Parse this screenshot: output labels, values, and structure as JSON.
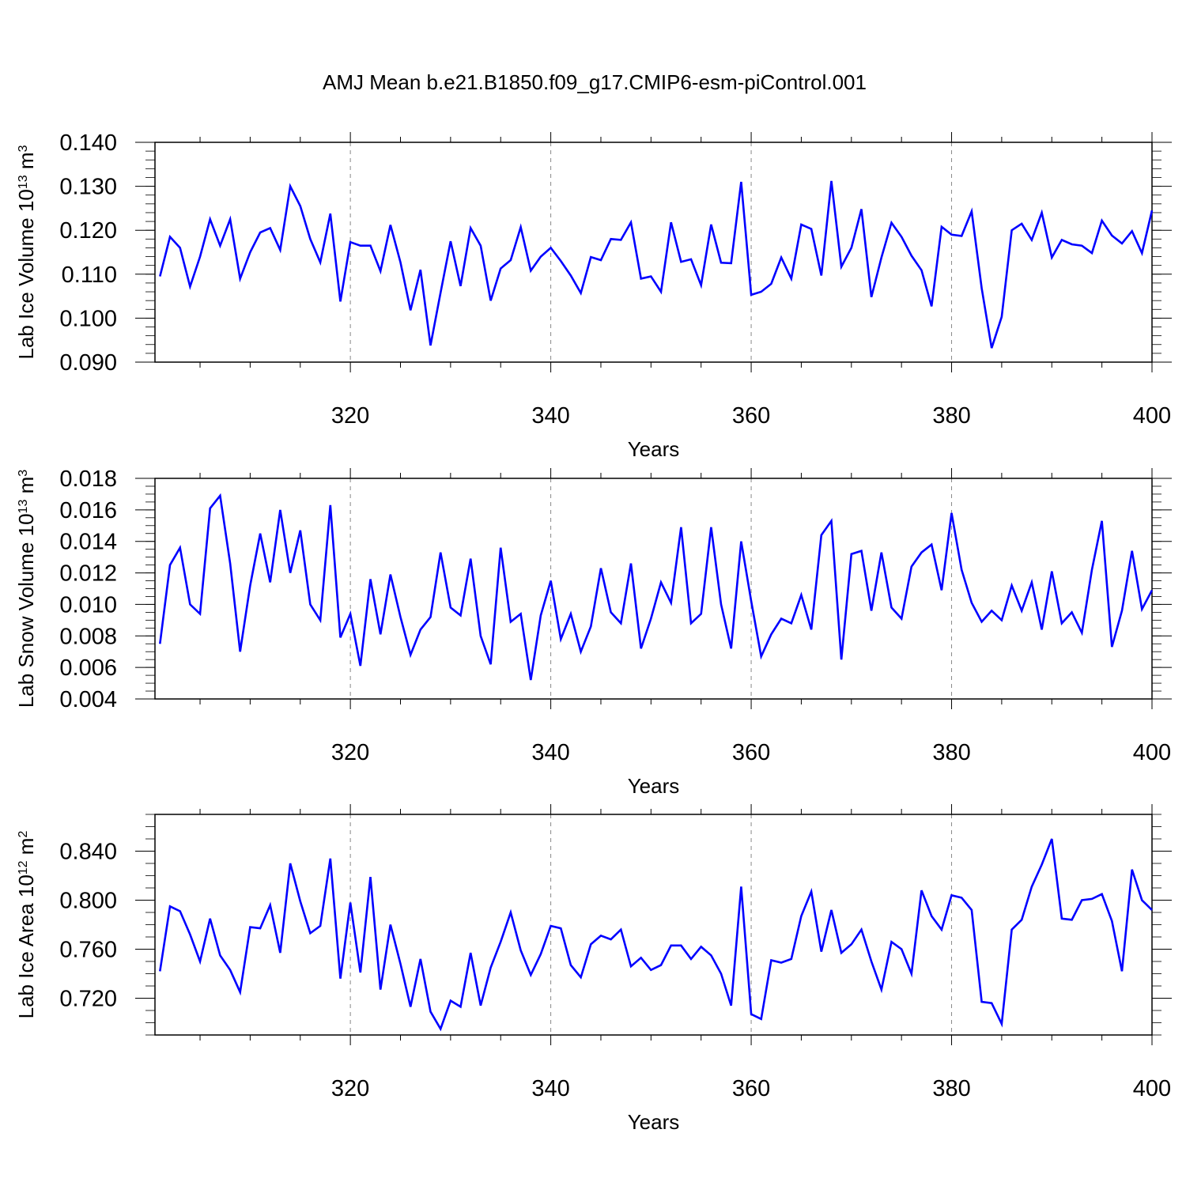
{
  "figure_title": "AMJ Mean b.e21.B1850.f09_g17.CMIP6-esm-piControl.001",
  "colors": {
    "series": "#0000ff",
    "axis": "#000000",
    "grid": "#888888"
  },
  "chart_data": [
    {
      "type": "line",
      "title": "",
      "ylabel": "Lab Ice Volume 10",
      "ylabel_exp": "13",
      "ylabel_unit": " m",
      "ylabel_unit_exp": "3",
      "xlabel": "Years",
      "xlim": [
        300.5,
        400
      ],
      "ylim": [
        0.09,
        0.14
      ],
      "xticks": [
        "320",
        "340",
        "360",
        "380",
        "400"
      ],
      "yticks": [
        "0.090",
        "0.100",
        "0.110",
        "0.120",
        "0.130",
        "0.140"
      ],
      "grid": "vertical dashed at major x ticks",
      "series": [
        {
          "x": [
            301,
            302,
            303,
            304,
            305,
            306,
            307,
            308,
            309,
            310,
            311,
            312,
            313,
            314,
            315,
            316,
            317,
            318,
            319,
            320,
            321,
            322,
            323,
            324,
            325,
            326,
            327,
            328,
            329,
            330,
            331,
            332,
            333,
            334,
            335,
            336,
            337,
            338,
            339,
            340,
            341,
            342,
            343,
            344,
            345,
            346,
            347,
            348,
            349,
            350,
            351,
            352,
            353,
            354,
            355,
            356,
            357,
            358,
            359,
            360,
            361,
            362,
            363,
            364,
            365,
            366,
            367,
            368,
            369,
            370,
            371,
            372,
            373,
            374,
            375,
            376,
            377,
            378,
            379,
            380,
            381,
            382,
            383,
            384,
            385,
            386,
            387,
            388,
            389,
            390,
            391,
            392,
            393,
            394,
            395,
            396,
            397,
            398,
            399,
            400
          ],
          "values": [
            0.1095,
            0.1185,
            0.116,
            0.1072,
            0.114,
            0.1225,
            0.1165,
            0.1225,
            0.109,
            0.115,
            0.1195,
            0.1205,
            0.1155,
            0.13,
            0.1255,
            0.118,
            0.1127,
            0.1238,
            0.1038,
            0.1173,
            0.1165,
            0.1165,
            0.1107,
            0.1212,
            0.1127,
            0.1018,
            0.111,
            0.0938,
            0.1058,
            0.1175,
            0.1073,
            0.1205,
            0.1165,
            0.104,
            0.1113,
            0.1132,
            0.1207,
            0.1108,
            0.114,
            0.116,
            0.113,
            0.1097,
            0.1057,
            0.1139,
            0.1132,
            0.118,
            0.1178,
            0.1218,
            0.109,
            0.1095,
            0.106,
            0.1218,
            0.1128,
            0.1134,
            0.1075,
            0.1213,
            0.1126,
            0.1125,
            0.131,
            0.1053,
            0.106,
            0.1078,
            0.1138,
            0.109,
            0.1213,
            0.1203,
            0.1097,
            0.1312,
            0.1117,
            0.116,
            0.1248,
            0.1048,
            0.1138,
            0.1217,
            0.1185,
            0.1142,
            0.1109,
            0.1027,
            0.1208,
            0.119,
            0.1187,
            0.1243,
            0.1068,
            0.0932,
            0.1003,
            0.12,
            0.1215,
            0.1178,
            0.124,
            0.1138,
            0.1178,
            0.1168,
            0.1165,
            0.1148,
            0.1222,
            0.1188,
            0.117,
            0.1198,
            0.1148,
            0.1245
          ]
        }
      ]
    },
    {
      "type": "line",
      "title": "",
      "ylabel": "Lab Snow Volume 10",
      "ylabel_exp": "13",
      "ylabel_unit": " m",
      "ylabel_unit_exp": "3",
      "xlabel": "Years",
      "xlim": [
        300.5,
        400
      ],
      "ylim": [
        0.004,
        0.018
      ],
      "xticks": [
        "320",
        "340",
        "360",
        "380",
        "400"
      ],
      "yticks": [
        "0.004",
        "0.006",
        "0.008",
        "0.010",
        "0.012",
        "0.014",
        "0.016",
        "0.018"
      ],
      "grid": "vertical dashed at major x ticks",
      "series": [
        {
          "x": [
            301,
            302,
            303,
            304,
            305,
            306,
            307,
            308,
            309,
            310,
            311,
            312,
            313,
            314,
            315,
            316,
            317,
            318,
            319,
            320,
            321,
            322,
            323,
            324,
            325,
            326,
            327,
            328,
            329,
            330,
            331,
            332,
            333,
            334,
            335,
            336,
            337,
            338,
            339,
            340,
            341,
            342,
            343,
            344,
            345,
            346,
            347,
            348,
            349,
            350,
            351,
            352,
            353,
            354,
            355,
            356,
            357,
            358,
            359,
            360,
            361,
            362,
            363,
            364,
            365,
            366,
            367,
            368,
            369,
            370,
            371,
            372,
            373,
            374,
            375,
            376,
            377,
            378,
            379,
            380,
            381,
            382,
            383,
            384,
            385,
            386,
            387,
            388,
            389,
            390,
            391,
            392,
            393,
            394,
            395,
            396,
            397,
            398,
            399,
            400
          ],
          "values": [
            0.0075,
            0.0125,
            0.0136,
            0.01,
            0.0094,
            0.0161,
            0.0169,
            0.0126,
            0.007,
            0.0112,
            0.0145,
            0.0114,
            0.016,
            0.012,
            0.0147,
            0.01,
            0.009,
            0.0163,
            0.0079,
            0.0094,
            0.0061,
            0.0116,
            0.0081,
            0.0119,
            0.0092,
            0.0068,
            0.0084,
            0.0092,
            0.0133,
            0.0098,
            0.0093,
            0.0129,
            0.008,
            0.0062,
            0.0136,
            0.0089,
            0.0094,
            0.0052,
            0.0093,
            0.0115,
            0.0078,
            0.0094,
            0.007,
            0.0086,
            0.0123,
            0.0095,
            0.0088,
            0.0126,
            0.0072,
            0.0091,
            0.0114,
            0.0101,
            0.0149,
            0.0088,
            0.0094,
            0.0149,
            0.01,
            0.0072,
            0.014,
            0.0102,
            0.0067,
            0.0081,
            0.0091,
            0.0088,
            0.0106,
            0.0084,
            0.0144,
            0.0153,
            0.0065,
            0.0132,
            0.0134,
            0.0096,
            0.0133,
            0.0098,
            0.0091,
            0.0124,
            0.0133,
            0.0138,
            0.0109,
            0.0158,
            0.0122,
            0.0101,
            0.0089,
            0.0096,
            0.009,
            0.0112,
            0.0096,
            0.0114,
            0.0084,
            0.0121,
            0.0088,
            0.0095,
            0.0082,
            0.0122,
            0.0153,
            0.0073,
            0.0096,
            0.0134,
            0.0097,
            0.0109
          ]
        }
      ]
    },
    {
      "type": "line",
      "title": "",
      "ylabel": "Lab Ice Area 10",
      "ylabel_exp": "12",
      "ylabel_unit": " m",
      "ylabel_unit_exp": "2",
      "xlabel": "Years",
      "xlim": [
        300.5,
        400
      ],
      "ylim": [
        0.69,
        0.87
      ],
      "xticks": [
        "320",
        "340",
        "360",
        "380",
        "400"
      ],
      "yticks": [
        "0.720",
        "0.760",
        "0.800",
        "0.840"
      ],
      "grid": "vertical dashed at major x ticks",
      "series": [
        {
          "x": [
            301,
            302,
            303,
            304,
            305,
            306,
            307,
            308,
            309,
            310,
            311,
            312,
            313,
            314,
            315,
            316,
            317,
            318,
            319,
            320,
            321,
            322,
            323,
            324,
            325,
            326,
            327,
            328,
            329,
            330,
            331,
            332,
            333,
            334,
            335,
            336,
            337,
            338,
            339,
            340,
            341,
            342,
            343,
            344,
            345,
            346,
            347,
            348,
            349,
            350,
            351,
            352,
            353,
            354,
            355,
            356,
            357,
            358,
            359,
            360,
            361,
            362,
            363,
            364,
            365,
            366,
            367,
            368,
            369,
            370,
            371,
            372,
            373,
            374,
            375,
            376,
            377,
            378,
            379,
            380,
            381,
            382,
            383,
            384,
            385,
            386,
            387,
            388,
            389,
            390,
            391,
            392,
            393,
            394,
            395,
            396,
            397,
            398,
            399,
            400
          ],
          "values": [
            0.742,
            0.795,
            0.791,
            0.772,
            0.75,
            0.785,
            0.755,
            0.743,
            0.725,
            0.778,
            0.777,
            0.796,
            0.757,
            0.83,
            0.799,
            0.773,
            0.779,
            0.834,
            0.736,
            0.798,
            0.741,
            0.819,
            0.727,
            0.78,
            0.748,
            0.713,
            0.752,
            0.709,
            0.695,
            0.718,
            0.713,
            0.757,
            0.714,
            0.745,
            0.766,
            0.79,
            0.759,
            0.739,
            0.756,
            0.779,
            0.777,
            0.747,
            0.737,
            0.764,
            0.771,
            0.768,
            0.776,
            0.746,
            0.753,
            0.743,
            0.747,
            0.763,
            0.763,
            0.752,
            0.762,
            0.755,
            0.74,
            0.714,
            0.811,
            0.707,
            0.703,
            0.751,
            0.749,
            0.752,
            0.787,
            0.807,
            0.758,
            0.792,
            0.757,
            0.764,
            0.776,
            0.75,
            0.727,
            0.766,
            0.76,
            0.74,
            0.808,
            0.787,
            0.776,
            0.804,
            0.802,
            0.792,
            0.717,
            0.716,
            0.699,
            0.776,
            0.784,
            0.811,
            0.829,
            0.85,
            0.785,
            0.784,
            0.8,
            0.801,
            0.805,
            0.783,
            0.742,
            0.825,
            0.8,
            0.792
          ]
        }
      ]
    }
  ]
}
